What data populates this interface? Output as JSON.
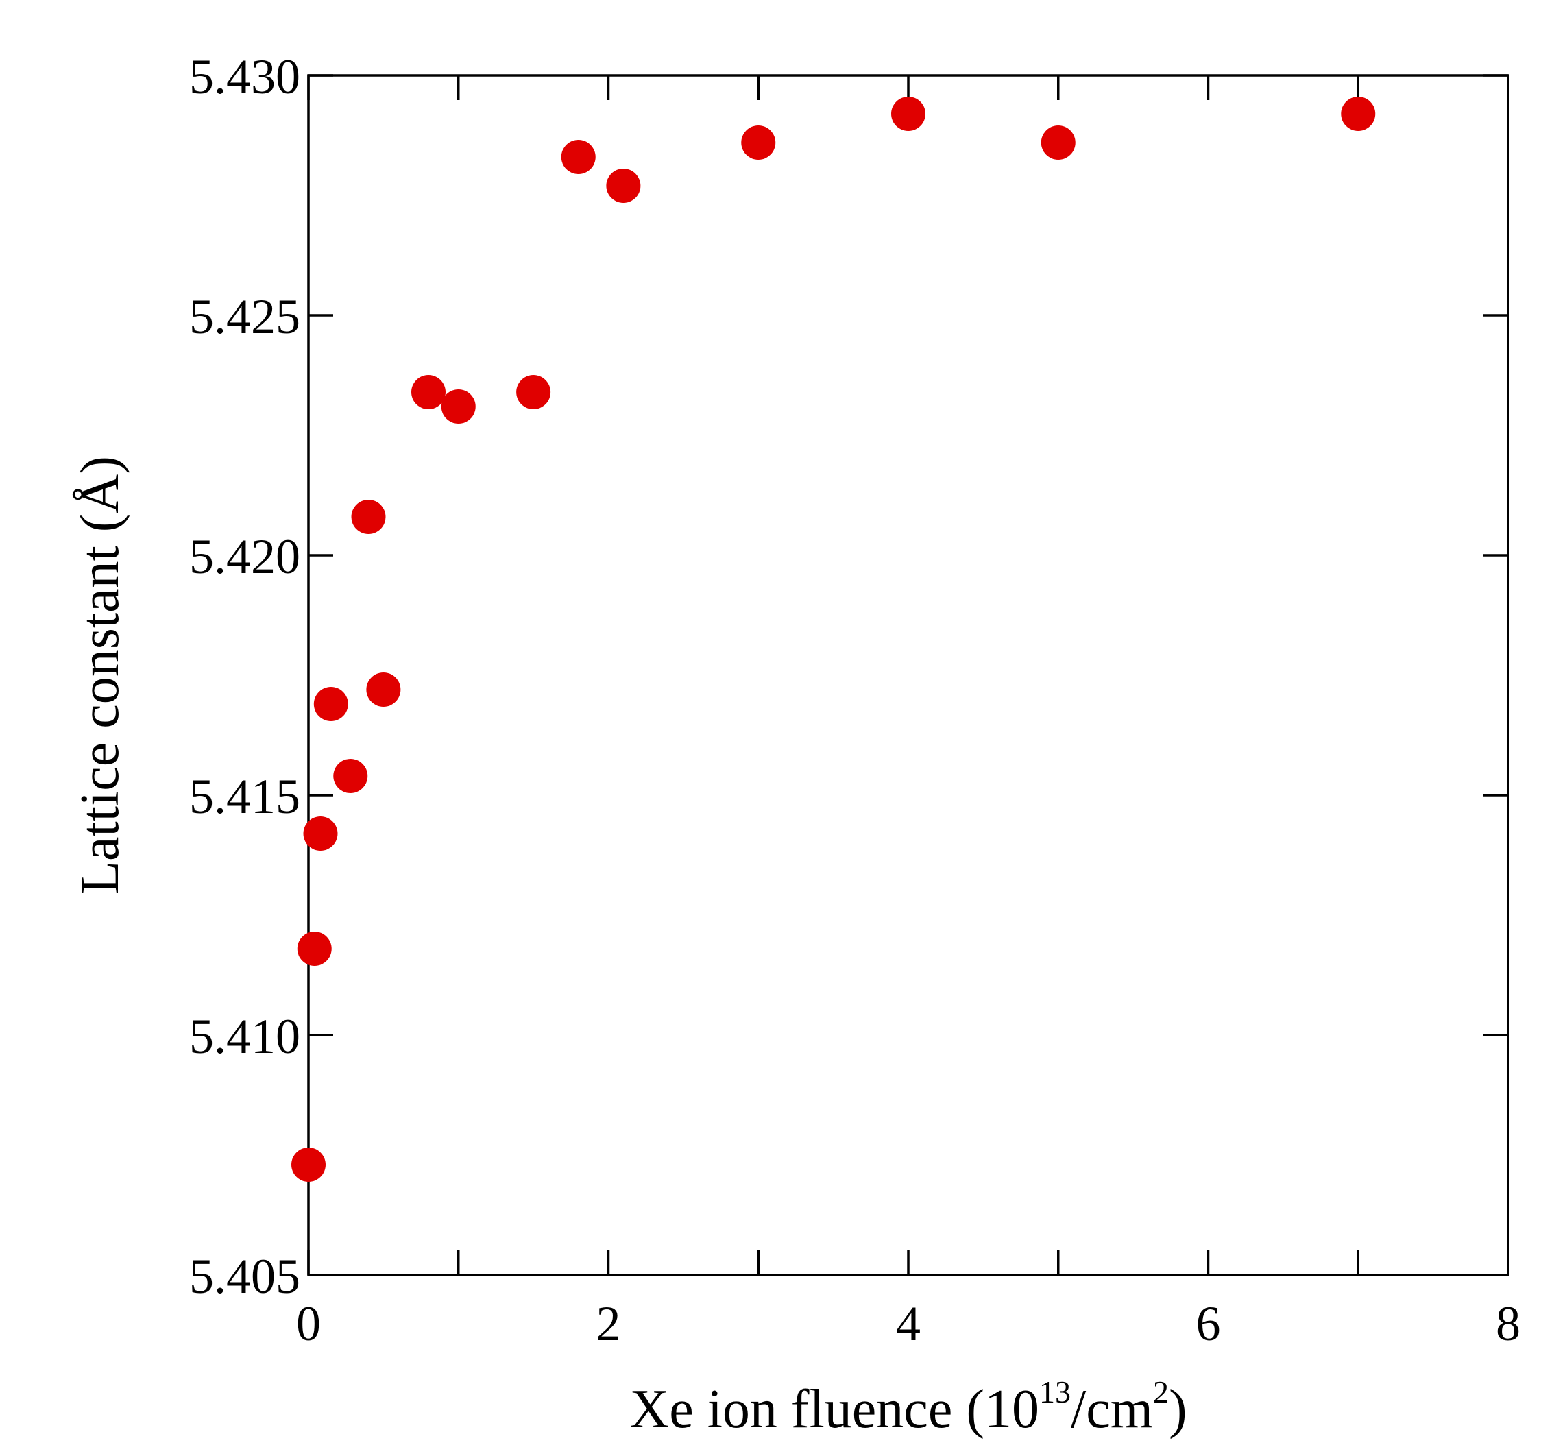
{
  "chart_data": {
    "type": "scatter",
    "xlabel": {
      "main": "Xe ion fluence (10",
      "sup1": "13",
      "mid": "/cm",
      "sup2": "2",
      "end": ")"
    },
    "ylabel": {
      "main": "Lattice constant (Å)"
    },
    "xlim": [
      0,
      8
    ],
    "ylim": [
      5.405,
      5.43
    ],
    "xticks": [
      "0",
      "2",
      "4",
      "6",
      "8"
    ],
    "yticks": [
      "5.405",
      "5.410",
      "5.415",
      "5.420",
      "5.425",
      "5.430"
    ],
    "grid": false,
    "marker_color": "#e00000",
    "series": [
      {
        "points": [
          {
            "x": 0.0,
            "y": 5.4073
          },
          {
            "x": 0.04,
            "y": 5.4118
          },
          {
            "x": 0.08,
            "y": 5.4142
          },
          {
            "x": 0.15,
            "y": 5.4169
          },
          {
            "x": 0.28,
            "y": 5.4154
          },
          {
            "x": 0.4,
            "y": 5.4208
          },
          {
            "x": 0.5,
            "y": 5.4172
          },
          {
            "x": 0.8,
            "y": 5.4234
          },
          {
            "x": 1.0,
            "y": 5.4231
          },
          {
            "x": 1.5,
            "y": 5.4234
          },
          {
            "x": 1.8,
            "y": 5.4283
          },
          {
            "x": 2.1,
            "y": 5.4277
          },
          {
            "x": 3.0,
            "y": 5.4286
          },
          {
            "x": 4.0,
            "y": 5.4292
          },
          {
            "x": 5.0,
            "y": 5.4286
          },
          {
            "x": 7.0,
            "y": 5.4292
          }
        ]
      }
    ]
  }
}
